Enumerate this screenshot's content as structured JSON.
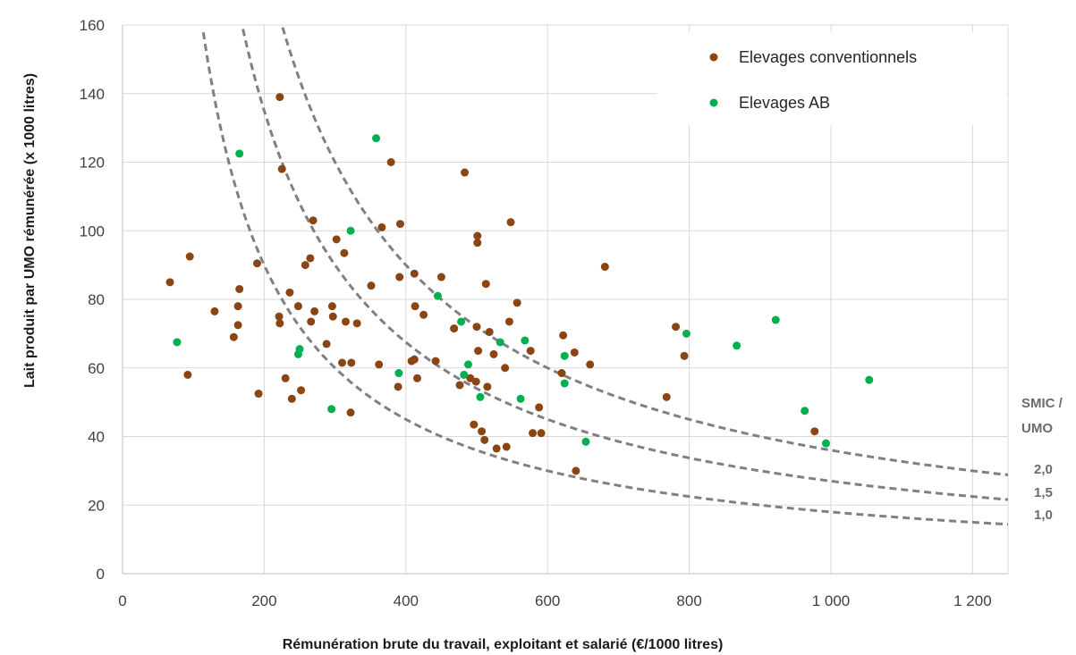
{
  "chart_data": {
    "type": "scatter",
    "xlabel": "Rémunération brute du travail, exploitant et salarié (€/1000 litres)",
    "ylabel": "Lait produit par UMO rémunérée (x 1000 litres)",
    "xlim": [
      0,
      1250
    ],
    "ylim": [
      0,
      160
    ],
    "x_ticks": [
      {
        "value": 0,
        "label": "0"
      },
      {
        "value": 200,
        "label": "200"
      },
      {
        "value": 400,
        "label": "400"
      },
      {
        "value": 600,
        "label": "600"
      },
      {
        "value": 800,
        "label": "800"
      },
      {
        "value": 1000,
        "label": "1 000"
      },
      {
        "value": 1200,
        "label": "1 200"
      }
    ],
    "y_ticks": [
      {
        "value": 0,
        "label": "0"
      },
      {
        "value": 20,
        "label": "20"
      },
      {
        "value": 40,
        "label": "40"
      },
      {
        "value": 60,
        "label": "60"
      },
      {
        "value": 80,
        "label": "80"
      },
      {
        "value": 100,
        "label": "100"
      },
      {
        "value": 120,
        "label": "120"
      },
      {
        "value": 140,
        "label": "140"
      },
      {
        "value": 160,
        "label": "160"
      }
    ],
    "grid": true,
    "legend_position": "top-right",
    "series": [
      {
        "name": "Elevages conventionnels",
        "color": "#8B4513",
        "points": [
          [
            67,
            85
          ],
          [
            92,
            58
          ],
          [
            95,
            92.5
          ],
          [
            130,
            76.5
          ],
          [
            157,
            69
          ],
          [
            163,
            72.5
          ],
          [
            163,
            78
          ],
          [
            165,
            83
          ],
          [
            190,
            90.5
          ],
          [
            192,
            52.5
          ],
          [
            221,
            75
          ],
          [
            222,
            73
          ],
          [
            222,
            139
          ],
          [
            225,
            118
          ],
          [
            230,
            57
          ],
          [
            236,
            82
          ],
          [
            239,
            51
          ],
          [
            248,
            78
          ],
          [
            252,
            53.5
          ],
          [
            258,
            90
          ],
          [
            265,
            92
          ],
          [
            266,
            73.5
          ],
          [
            269,
            103
          ],
          [
            271,
            76.5
          ],
          [
            288,
            67
          ],
          [
            296,
            78
          ],
          [
            297,
            75
          ],
          [
            302,
            97.5
          ],
          [
            310,
            61.5
          ],
          [
            313,
            93.5
          ],
          [
            315,
            73.5
          ],
          [
            322,
            47
          ],
          [
            323,
            61.5
          ],
          [
            331,
            73
          ],
          [
            351,
            84
          ],
          [
            362,
            61
          ],
          [
            366,
            101
          ],
          [
            379,
            120
          ],
          [
            389,
            54.5
          ],
          [
            391,
            86.5
          ],
          [
            392,
            102
          ],
          [
            408,
            62
          ],
          [
            412,
            62.5
          ],
          [
            412,
            87.5
          ],
          [
            413,
            78
          ],
          [
            416,
            57
          ],
          [
            425,
            75.5
          ],
          [
            442,
            62
          ],
          [
            450,
            86.5
          ],
          [
            468,
            71.5
          ],
          [
            476,
            55
          ],
          [
            483,
            117
          ],
          [
            491,
            57
          ],
          [
            496,
            43.5
          ],
          [
            499,
            56
          ],
          [
            500,
            72
          ],
          [
            501,
            96.5
          ],
          [
            501,
            98.5
          ],
          [
            502,
            65
          ],
          [
            507,
            41.5
          ],
          [
            511,
            39
          ],
          [
            513,
            84.5
          ],
          [
            515,
            54.5
          ],
          [
            518,
            70.5
          ],
          [
            524,
            64
          ],
          [
            528,
            36.5
          ],
          [
            540,
            60
          ],
          [
            542,
            37
          ],
          [
            546,
            73.5
          ],
          [
            548,
            102.5
          ],
          [
            557,
            79
          ],
          [
            576,
            65
          ],
          [
            579,
            41
          ],
          [
            588,
            48.5
          ],
          [
            591,
            41
          ],
          [
            620,
            58.5
          ],
          [
            622,
            69.5
          ],
          [
            638,
            64.5
          ],
          [
            640,
            30
          ],
          [
            660,
            61
          ],
          [
            681,
            89.5
          ],
          [
            768,
            51.5
          ],
          [
            781,
            72
          ],
          [
            793,
            63.5
          ],
          [
            977,
            41.5
          ]
        ]
      },
      {
        "name": "Elevages AB",
        "color": "#00B050",
        "points": [
          [
            77,
            67.5
          ],
          [
            165,
            122.5
          ],
          [
            248,
            64
          ],
          [
            250,
            65.5
          ],
          [
            295,
            48
          ],
          [
            322,
            100
          ],
          [
            358,
            127
          ],
          [
            390,
            58.5
          ],
          [
            445,
            81
          ],
          [
            478,
            73.5
          ],
          [
            482,
            58
          ],
          [
            488,
            61
          ],
          [
            505,
            51.5
          ],
          [
            533,
            67.5
          ],
          [
            562,
            51
          ],
          [
            568,
            68
          ],
          [
            624,
            55.5
          ],
          [
            624,
            63.5
          ],
          [
            654,
            38.5
          ],
          [
            796,
            70
          ],
          [
            867,
            66.5
          ],
          [
            922,
            74
          ],
          [
            963,
            47.5
          ],
          [
            993,
            38
          ],
          [
            1054,
            56.5
          ]
        ]
      }
    ],
    "curves": [
      {
        "label": "2,0",
        "k": 36000
      },
      {
        "label": "1,5",
        "k": 27000
      },
      {
        "label": "1,0",
        "k": 18000
      }
    ],
    "curves_title": [
      "SMIC /",
      "UMO"
    ]
  }
}
